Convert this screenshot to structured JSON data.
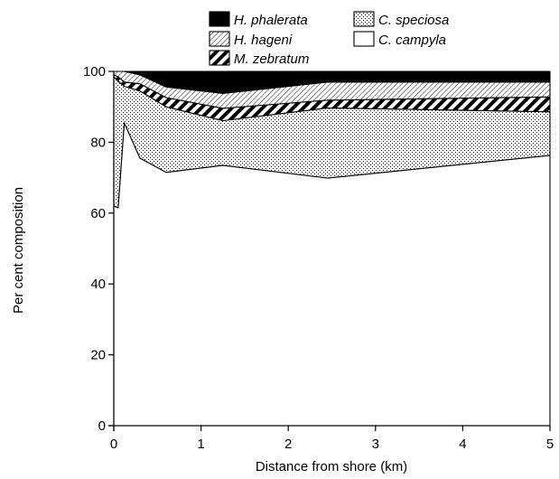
{
  "chart_data": {
    "type": "area",
    "stacked": true,
    "title": "",
    "xlabel": "Distance from shore (km)",
    "ylabel": "Per cent composition",
    "xlim": [
      0,
      5
    ],
    "ylim": [
      0,
      100
    ],
    "xticks": [
      0,
      1,
      2,
      3,
      4,
      5
    ],
    "yticks": [
      0,
      20,
      40,
      60,
      80,
      100
    ],
    "grid": false,
    "legend_position": "top",
    "x": [
      0,
      0.05,
      0.12,
      0.3,
      0.6,
      1.25,
      2.45,
      5
    ],
    "series": [
      {
        "name": "C. campyla",
        "pattern": "white",
        "values": [
          62,
          61.5,
          85.5,
          75.5,
          71.5,
          73.5,
          69.9,
          76.3
        ]
      },
      {
        "name": "C. speciosa",
        "pattern": "stipple",
        "values": [
          36.5,
          35.8,
          10.3,
          19,
          18.5,
          12.6,
          19.8,
          12.3
        ]
      },
      {
        "name": "M. zebratum",
        "pattern": "bold-diagonal",
        "values": [
          0.5,
          1.2,
          1.2,
          2,
          2.6,
          3.5,
          2.2,
          4.2
        ]
      },
      {
        "name": "H. hageni",
        "pattern": "fine-hatch",
        "values": [
          1,
          1.5,
          3,
          2.5,
          3,
          4.2,
          5.1,
          4.2
        ]
      },
      {
        "name": "H. phalerata",
        "pattern": "solid-black",
        "values": [
          0,
          0,
          0,
          1,
          4.4,
          6.2,
          3,
          3
        ]
      }
    ],
    "legend_order": [
      "H. phalerata",
      "H. hageni",
      "M. zebratum",
      "C. speciosa",
      "C. campyla"
    ]
  }
}
